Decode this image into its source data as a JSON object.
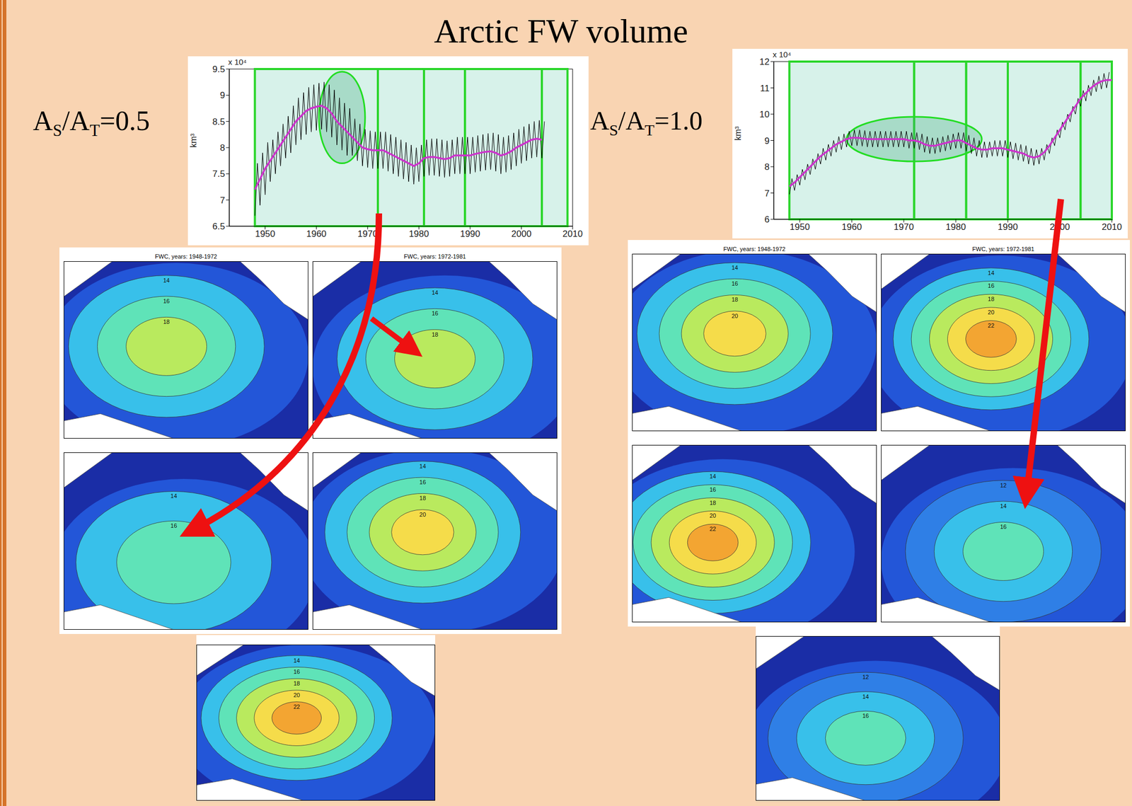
{
  "title": "Arctic FW volume",
  "labels": [
    [
      "A",
      "S",
      "/A",
      "T",
      "=0.5"
    ],
    [
      "A",
      "S",
      "/A",
      "T",
      "=1.0"
    ]
  ],
  "chart_data": [
    {
      "type": "line",
      "y_label": "km³",
      "y_multiplier": "x 10⁴",
      "xlim": [
        1943,
        2010
      ],
      "xticks": [
        1950,
        1960,
        1970,
        1980,
        1990,
        2000,
        2010
      ],
      "ylim": [
        6.5,
        9.5
      ],
      "yticks": [
        6.5,
        7,
        7.5,
        8,
        8.5,
        9,
        9.5
      ],
      "grid": false,
      "period_edges": [
        1948,
        1972,
        1981,
        1989,
        2004,
        2009
      ],
      "highlight": {
        "x": [
          1960.5,
          1969.5
        ],
        "y": [
          7.7,
          9.45
        ]
      },
      "series": [
        {
          "color": "#000000",
          "line_style": "thin",
          "x": [
            1948,
            1948.5,
            1949,
            1949.5,
            1950,
            1950.5,
            1951,
            1951.5,
            1952,
            1952.5,
            1953,
            1953.5,
            1954,
            1954.5,
            1955,
            1955.5,
            1956,
            1956.5,
            1957,
            1957.5,
            1958,
            1958.5,
            1959,
            1959.5,
            1960,
            1960.5,
            1961,
            1961.5,
            1962,
            1962.5,
            1963,
            1963.5,
            1964,
            1964.5,
            1965,
            1965.5,
            1966,
            1966.5,
            1967,
            1967.5,
            1968,
            1968.5,
            1969,
            1969.5,
            1970,
            1970.5,
            1971,
            1971.5,
            1972,
            1972.5,
            1973,
            1973.5,
            1974,
            1974.5,
            1975,
            1975.5,
            1976,
            1976.5,
            1977,
            1977.5,
            1978,
            1978.5,
            1979,
            1979.5,
            1980,
            1980.5,
            1981,
            1981.5,
            1982,
            1982.5,
            1983,
            1983.5,
            1984,
            1984.5,
            1985,
            1985.5,
            1986,
            1986.5,
            1987,
            1987.5,
            1988,
            1988.5,
            1989,
            1989.5,
            1990,
            1990.5,
            1991,
            1991.5,
            1992,
            1992.5,
            1993,
            1993.5,
            1994,
            1994.5,
            1995,
            1995.5,
            1996,
            1996.5,
            1997,
            1997.5,
            1998,
            1998.5,
            1999,
            1999.5,
            2000,
            2000.5,
            2001,
            2001.5,
            2002,
            2002.5,
            2003,
            2003.5,
            2004,
            2004.5
          ],
          "values": [
            6.7,
            7.7,
            6.9,
            7.9,
            7.1,
            8.1,
            7.35,
            8.15,
            7.5,
            8.3,
            7.65,
            8.45,
            7.8,
            8.6,
            7.9,
            8.8,
            8.05,
            8.95,
            8.15,
            9.05,
            8.25,
            9.15,
            8.3,
            9.2,
            8.33,
            9.23,
            8.35,
            9.25,
            8.3,
            9.2,
            8.2,
            9.1,
            8.05,
            8.95,
            7.95,
            8.85,
            7.85,
            8.75,
            7.85,
            8.55,
            7.75,
            8.45,
            7.65,
            8.35,
            7.62,
            8.32,
            7.6,
            8.3,
            7.6,
            8.3,
            7.6,
            8.3,
            7.55,
            8.25,
            7.5,
            8.2,
            7.45,
            8.15,
            7.4,
            8.1,
            7.35,
            8.05,
            7.3,
            8.0,
            7.35,
            8.05,
            7.45,
            8.15,
            7.47,
            8.17,
            7.47,
            8.17,
            7.45,
            8.15,
            7.43,
            8.13,
            7.45,
            8.15,
            7.5,
            8.2,
            7.5,
            8.2,
            7.5,
            8.2,
            7.5,
            8.2,
            7.53,
            8.23,
            7.55,
            8.25,
            7.57,
            8.27,
            7.58,
            8.28,
            7.55,
            8.25,
            7.5,
            8.2,
            7.53,
            8.23,
            7.58,
            8.28,
            7.65,
            8.35,
            7.7,
            8.4,
            7.75,
            8.45,
            7.8,
            8.5,
            7.82,
            8.52,
            7.8,
            8.5
          ]
        },
        {
          "color": "#cc33cc",
          "line_style": "thick",
          "x": [
            1948,
            1949,
            1950,
            1951,
            1952,
            1953,
            1954,
            1955,
            1956,
            1957,
            1958,
            1959,
            1960,
            1961,
            1962,
            1963,
            1964,
            1965,
            1966,
            1967,
            1968,
            1969,
            1970,
            1971,
            1972,
            1973,
            1974,
            1975,
            1976,
            1977,
            1978,
            1979,
            1980,
            1981,
            1982,
            1983,
            1984,
            1985,
            1986,
            1987,
            1988,
            1989,
            1990,
            1991,
            1992,
            1993,
            1994,
            1995,
            1996,
            1997,
            1998,
            1999,
            2000,
            2001,
            2002,
            2003,
            2004
          ],
          "values": [
            7.2,
            7.4,
            7.6,
            7.75,
            7.9,
            8.05,
            8.2,
            8.35,
            8.5,
            8.6,
            8.7,
            8.75,
            8.78,
            8.8,
            8.75,
            8.65,
            8.5,
            8.4,
            8.3,
            8.2,
            8.1,
            8.0,
            7.97,
            7.95,
            7.95,
            7.95,
            7.9,
            7.85,
            7.8,
            7.75,
            7.7,
            7.65,
            7.7,
            7.8,
            7.82,
            7.82,
            7.8,
            7.78,
            7.8,
            7.85,
            7.85,
            7.85,
            7.85,
            7.88,
            7.9,
            7.92,
            7.93,
            7.9,
            7.85,
            7.88,
            7.93,
            8.0,
            8.05,
            8.1,
            8.15,
            8.17,
            8.15
          ]
        }
      ]
    },
    {
      "type": "line",
      "y_label": "km³",
      "y_multiplier": "x 10⁴",
      "xlim": [
        1945,
        2010
      ],
      "xticks": [
        1950,
        1960,
        1970,
        1980,
        1990,
        2000,
        2010
      ],
      "ylim": [
        6,
        12
      ],
      "yticks": [
        6,
        7,
        8,
        9,
        10,
        11,
        12
      ],
      "grid": false,
      "period_edges": [
        1948,
        1972,
        1982,
        1990,
        2004,
        2010
      ],
      "highlight": {
        "x": [
          1959,
          1985
        ],
        "y": [
          8.2,
          9.9
        ]
      },
      "series": [
        {
          "color": "#000000",
          "line_style": "thin",
          "x": [
            1948,
            1948.5,
            1949,
            1949.5,
            1950,
            1950.5,
            1951,
            1951.5,
            1952,
            1952.5,
            1953,
            1953.5,
            1954,
            1954.5,
            1955,
            1955.5,
            1956,
            1956.5,
            1957,
            1957.5,
            1958,
            1958.5,
            1959,
            1959.5,
            1960,
            1960.5,
            1961,
            1961.5,
            1962,
            1962.5,
            1963,
            1963.5,
            1964,
            1964.5,
            1965,
            1965.5,
            1966,
            1966.5,
            1967,
            1967.5,
            1968,
            1968.5,
            1969,
            1969.5,
            1970,
            1970.5,
            1971,
            1971.5,
            1972,
            1972.5,
            1973,
            1973.5,
            1974,
            1974.5,
            1975,
            1975.5,
            1976,
            1976.5,
            1977,
            1977.5,
            1978,
            1978.5,
            1979,
            1979.5,
            1980,
            1980.5,
            1981,
            1981.5,
            1982,
            1982.5,
            1983,
            1983.5,
            1984,
            1984.5,
            1985,
            1985.5,
            1986,
            1986.5,
            1987,
            1987.5,
            1988,
            1988.5,
            1989,
            1989.5,
            1990,
            1990.5,
            1991,
            1991.5,
            1992,
            1992.5,
            1993,
            1993.5,
            1994,
            1994.5,
            1995,
            1995.5,
            1996,
            1996.5,
            1997,
            1997.5,
            1998,
            1998.5,
            1999,
            1999.5,
            2000,
            2000.5,
            2001,
            2001.5,
            2002,
            2002.5,
            2003,
            2003.5,
            2004,
            2004.5,
            2005,
            2005.5,
            2006,
            2006.5,
            2007,
            2007.5,
            2008,
            2008.5,
            2009,
            2009.5
          ],
          "values": [
            6.95,
            7.55,
            7.1,
            7.7,
            7.3,
            7.9,
            7.5,
            8.1,
            7.7,
            8.3,
            7.9,
            8.5,
            8.1,
            8.7,
            8.25,
            8.85,
            8.4,
            9.0,
            8.55,
            9.15,
            8.65,
            9.25,
            8.75,
            9.35,
            8.8,
            9.4,
            8.8,
            9.4,
            8.78,
            9.38,
            8.75,
            9.35,
            8.75,
            9.35,
            8.75,
            9.35,
            8.75,
            9.35,
            8.75,
            9.35,
            8.75,
            9.35,
            8.75,
            9.35,
            8.75,
            9.35,
            8.7,
            9.3,
            8.7,
            9.3,
            8.65,
            9.25,
            8.55,
            9.15,
            8.5,
            9.1,
            8.5,
            9.1,
            8.55,
            9.15,
            8.6,
            9.2,
            8.65,
            9.25,
            8.7,
            9.3,
            8.7,
            9.3,
            8.6,
            9.2,
            8.5,
            9.1,
            8.4,
            9.0,
            8.35,
            8.95,
            8.35,
            8.95,
            8.4,
            9.0,
            8.4,
            9.0,
            8.4,
            9.0,
            8.35,
            8.95,
            8.3,
            8.9,
            8.25,
            8.85,
            8.2,
            8.8,
            8.1,
            8.7,
            8.05,
            8.65,
            8.1,
            8.7,
            8.25,
            8.85,
            8.5,
            9.1,
            8.8,
            9.4,
            9.1,
            9.7,
            9.4,
            10.0,
            9.7,
            10.3,
            10.0,
            10.6,
            10.3,
            10.9,
            10.5,
            11.1,
            10.7,
            11.3,
            10.85,
            11.45,
            10.95,
            11.55,
            11.0,
            11.6
          ]
        },
        {
          "color": "#cc33cc",
          "line_style": "thick",
          "x": [
            1948,
            1949,
            1950,
            1951,
            1952,
            1953,
            1954,
            1955,
            1956,
            1957,
            1958,
            1959,
            1960,
            1961,
            1962,
            1963,
            1964,
            1965,
            1966,
            1967,
            1968,
            1969,
            1970,
            1971,
            1972,
            1973,
            1974,
            1975,
            1976,
            1977,
            1978,
            1979,
            1980,
            1981,
            1982,
            1983,
            1984,
            1985,
            1986,
            1987,
            1988,
            1989,
            1990,
            1991,
            1992,
            1993,
            1994,
            1995,
            1996,
            1997,
            1998,
            1999,
            2000,
            2001,
            2002,
            2003,
            2004,
            2005,
            2006,
            2007,
            2008,
            2009,
            2010
          ],
          "values": [
            7.25,
            7.4,
            7.6,
            7.8,
            8.0,
            8.2,
            8.4,
            8.55,
            8.7,
            8.85,
            8.95,
            9.05,
            9.1,
            9.1,
            9.08,
            9.05,
            9.05,
            9.05,
            9.05,
            9.05,
            9.05,
            9.05,
            9.05,
            9.0,
            9.0,
            8.95,
            8.85,
            8.8,
            8.8,
            8.85,
            8.9,
            8.95,
            9.0,
            9.0,
            8.9,
            8.8,
            8.7,
            8.65,
            8.65,
            8.7,
            8.7,
            8.7,
            8.65,
            8.6,
            8.55,
            8.5,
            8.4,
            8.35,
            8.4,
            8.55,
            8.8,
            9.1,
            9.4,
            9.7,
            10.0,
            10.3,
            10.6,
            10.8,
            11.0,
            11.15,
            11.25,
            11.3,
            11.3
          ]
        }
      ]
    }
  ],
  "maps": [
    [
      {
        "title": "FWC, years: 1948-1972",
        "levels": [
          14,
          16,
          18
        ]
      },
      {
        "title": "FWC, years: 1972-1981",
        "levels": [
          14,
          16,
          18
        ]
      },
      {
        "levels": [
          14,
          16
        ]
      },
      {
        "levels": [
          14,
          16,
          18,
          20
        ]
      },
      {
        "levels": [
          14,
          16,
          18,
          20,
          22
        ]
      }
    ],
    [
      {
        "title": "FWC, years: 1948-1972",
        "levels": [
          14,
          16,
          18,
          20
        ]
      },
      {
        "title": "FWC, years: 1972-1981",
        "levels": [
          14,
          16,
          18,
          20,
          22
        ]
      },
      {
        "levels": [
          14,
          16,
          18,
          20,
          22
        ]
      },
      {
        "levels": [
          12,
          14,
          16
        ]
      },
      {
        "levels": [
          12,
          14,
          16
        ]
      }
    ]
  ]
}
